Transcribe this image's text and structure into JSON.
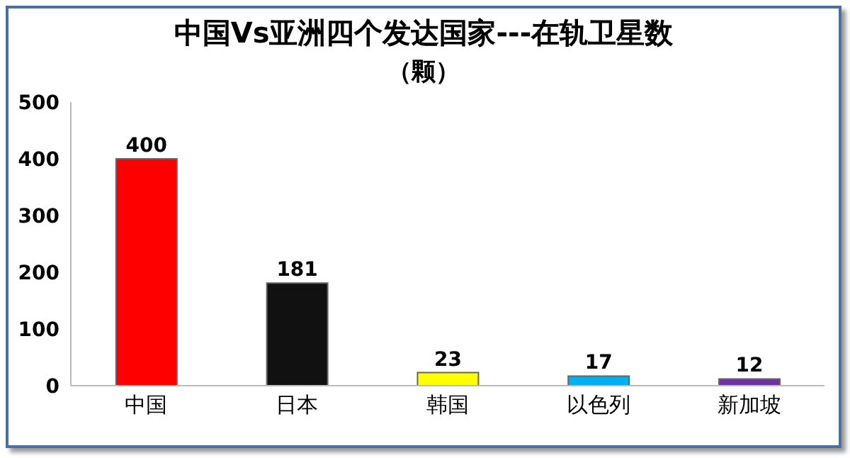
{
  "chart_data": {
    "type": "bar",
    "title": "中国Vs亚洲四个发达国家---在轨卫星数",
    "subtitle": "（颗）",
    "categories": [
      "中国",
      "日本",
      "韩国",
      "以色列",
      "新加坡"
    ],
    "values": [
      400,
      181,
      23,
      17,
      12
    ],
    "colors": [
      "#ff0000",
      "#111111",
      "#ffff00",
      "#00b0f0",
      "#7030a0"
    ],
    "ylim": [
      0,
      500
    ],
    "yticks": [
      0,
      100,
      200,
      300,
      400,
      500
    ],
    "grid": false,
    "data_labels": true
  }
}
